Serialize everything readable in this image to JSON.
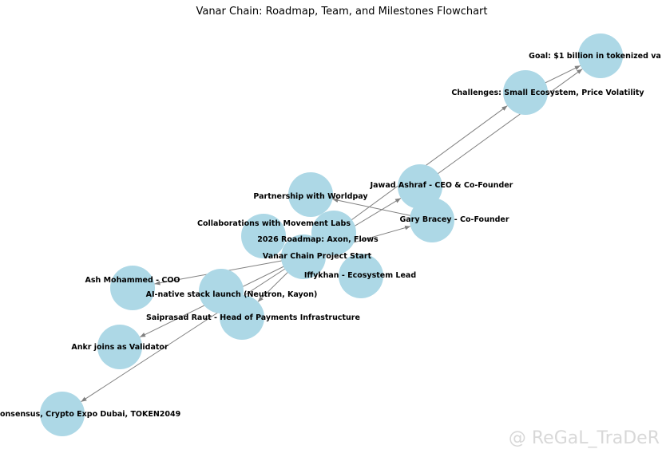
{
  "title": "Vanar Chain: Roadmap, Team, and Milestones Flowchart",
  "colors": {
    "node": "#add8e6",
    "edge": "#808080"
  },
  "watermark": "@ ReGaL_TraDeR",
  "nodes": [
    {
      "id": "goal",
      "label": "Goal: $1 billion in tokenized va"
    },
    {
      "id": "challenges",
      "label": "Challenges: Small Ecosystem, Price Volatility"
    },
    {
      "id": "jawad",
      "label": "Jawad Ashraf - CEO & Co-Founder"
    },
    {
      "id": "gary",
      "label": "Gary Bracey - Co-Founder"
    },
    {
      "id": "worldpay",
      "label": "Partnership with Worldpay"
    },
    {
      "id": "movement",
      "label": "Collaborations with Movement Labs"
    },
    {
      "id": "roadmap",
      "label": "2026 Roadmap: Axon, Flows"
    },
    {
      "id": "start",
      "label": "Vanar Chain Project Start"
    },
    {
      "id": "iffykhan",
      "label": "Iffykhan - Ecosystem Lead"
    },
    {
      "id": "ash",
      "label": "Ash Mohammed - COO"
    },
    {
      "id": "ai",
      "label": "AI-native stack launch (Neutron, Kayon)"
    },
    {
      "id": "saiprasad",
      "label": "Saiprasad Raut - Head of Payments Infrastructure"
    },
    {
      "id": "ankr",
      "label": "Ankr joins as Validator"
    },
    {
      "id": "consensus",
      "label": "onsensus, Crypto Expo Dubai, TOKEN2049"
    }
  ],
  "edges": [
    [
      "start",
      "ash"
    ],
    [
      "start",
      "ankr"
    ],
    [
      "start",
      "consensus"
    ],
    [
      "start",
      "saiprasad"
    ],
    [
      "start",
      "jawad"
    ],
    [
      "start",
      "gary"
    ],
    [
      "gary",
      "worldpay"
    ],
    [
      "roadmap",
      "challenges"
    ],
    [
      "challenges",
      "goal"
    ],
    [
      "jawad",
      "goal"
    ]
  ]
}
